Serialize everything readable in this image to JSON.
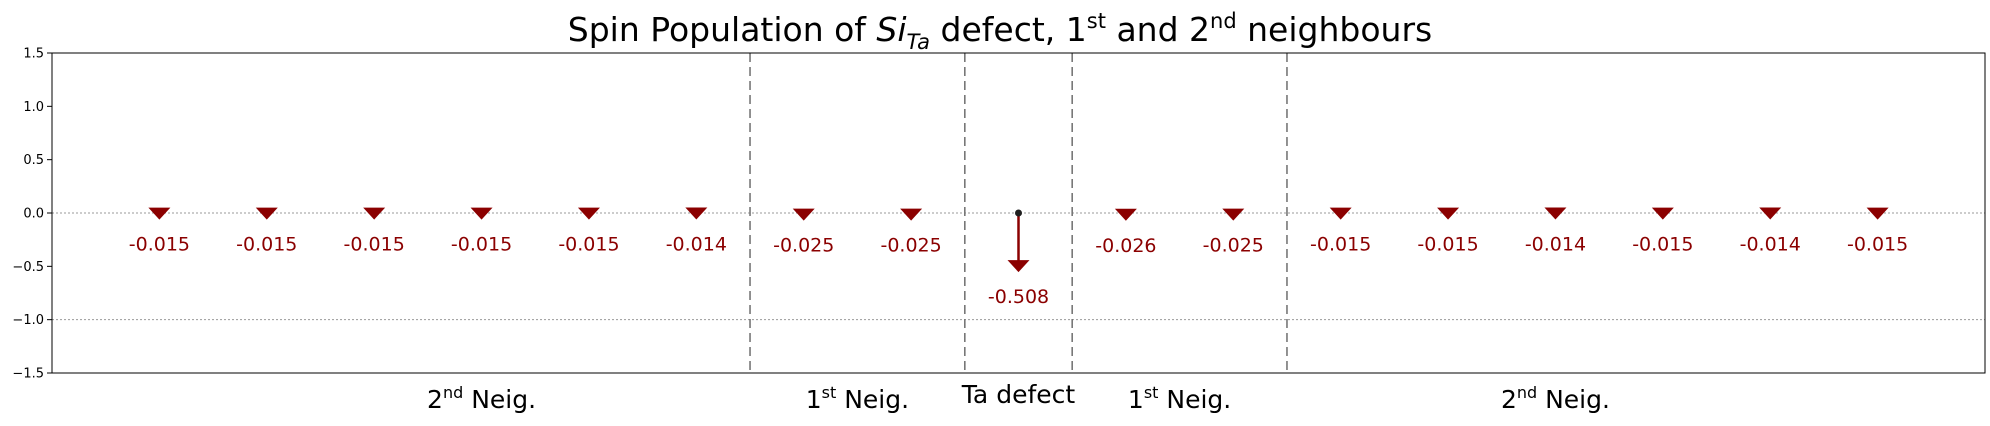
{
  "chart_data": {
    "type": "lollipop",
    "title": {
      "prefix": "Spin Population of ",
      "main": "Si",
      "main_sub": "Ta",
      "middle": " defect, 1",
      "sup1": "st",
      "and": " and 2",
      "sup2": "nd",
      "suffix": " neighbours"
    },
    "ylim": [
      -1.5,
      1.5
    ],
    "yticks": [
      "1.5",
      "1.0",
      "0.5",
      "0.0",
      "−0.5",
      "−1.0",
      "−1.5"
    ],
    "ytick_values": [
      1.5,
      1.0,
      0.5,
      0.0,
      -0.5,
      -1.0,
      -1.5
    ],
    "grid_lines": [
      0.0,
      -1.0
    ],
    "x_count": 17,
    "values": [
      -0.015,
      -0.015,
      -0.015,
      -0.015,
      -0.015,
      -0.014,
      -0.025,
      -0.025,
      -0.508,
      -0.026,
      -0.025,
      -0.015,
      -0.015,
      -0.014,
      -0.015,
      -0.014,
      -0.015
    ],
    "value_labels": [
      "-0.015",
      "-0.015",
      "-0.015",
      "-0.015",
      "-0.015",
      "-0.014",
      "-0.025",
      "-0.025",
      "-0.508",
      "-0.026",
      "-0.025",
      "-0.015",
      "-0.015",
      "-0.014",
      "-0.015",
      "-0.014",
      "-0.015"
    ],
    "region_boundaries": [
      5.5,
      7.5,
      8.5,
      10.5
    ],
    "regions": [
      {
        "base": "2",
        "sup": "nd",
        "rest": " Neig.",
        "center": 3.0
      },
      {
        "base": "1",
        "sup": "st",
        "rest": " Neig.",
        "center": 6.5
      },
      {
        "base": "Ta defect",
        "sup": "",
        "rest": "",
        "center": 8.0
      },
      {
        "base": "1",
        "sup": "st",
        "rest": " Neig.",
        "center": 9.5
      },
      {
        "base": "2",
        "sup": "nd",
        "rest": " Neig.",
        "center": 13.0
      }
    ],
    "colors": {
      "stem": "#8b0000",
      "marker": "#8b0000",
      "label": "#8b0000",
      "base": "#1f1f1f"
    }
  }
}
